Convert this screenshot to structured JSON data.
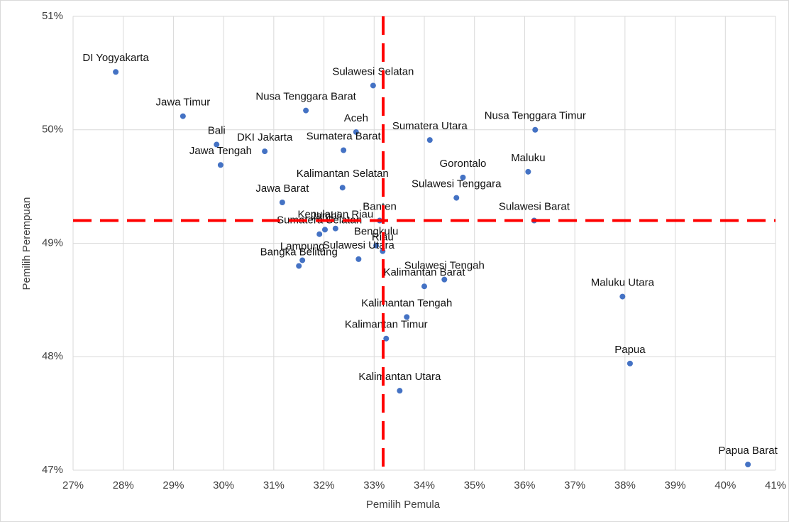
{
  "chart_data": {
    "type": "scatter",
    "xlabel": "Pemilih Pemula",
    "ylabel": "Pemilih Perempuan",
    "color": "#4472c4",
    "grid": true,
    "xlim": [
      27,
      41
    ],
    "ylim": [
      47,
      51
    ],
    "xticks": [
      {
        "value": 27,
        "label": "27%"
      },
      {
        "value": 28,
        "label": "28%"
      },
      {
        "value": 29,
        "label": "29%"
      },
      {
        "value": 30,
        "label": "30%"
      },
      {
        "value": 31,
        "label": "31%"
      },
      {
        "value": 32,
        "label": "32%"
      },
      {
        "value": 33,
        "label": "33%"
      },
      {
        "value": 34,
        "label": "34%"
      },
      {
        "value": 35,
        "label": "35%"
      },
      {
        "value": 36,
        "label": "36%"
      },
      {
        "value": 37,
        "label": "37%"
      },
      {
        "value": 38,
        "label": "38%"
      },
      {
        "value": 39,
        "label": "39%"
      },
      {
        "value": 40,
        "label": "40%"
      },
      {
        "value": 41,
        "label": "41%"
      }
    ],
    "yticks": [
      {
        "value": 47,
        "label": "47%"
      },
      {
        "value": 48,
        "label": "48%"
      },
      {
        "value": 49,
        "label": "49%"
      },
      {
        "value": 50,
        "label": "50%"
      },
      {
        "value": 51,
        "label": "51%"
      }
    ],
    "reference_lines": {
      "x": 33.18,
      "y": 49.2,
      "color": "#ff0000"
    },
    "labels": [
      "DI Yogyakarta",
      "Jawa Timur",
      "Bali",
      "Jawa Tengah",
      "DKI Jakarta",
      "Nusa Tenggara Barat",
      "Sulawesi Selatan",
      "Aceh",
      "Sumatera Barat",
      "Sumatera Utara",
      "Nusa Tenggara Timur",
      "Maluku",
      "Gorontalo",
      "Sulawesi Tenggara",
      "Kalimantan Selatan",
      "Jawa Barat",
      "Banten",
      "Sulawesi Barat",
      "Kepulauan Riau",
      "Jambi",
      "Sumatera Selatan",
      "Bengkulu",
      "Riau",
      "Sulawesi Utara",
      "Lampung",
      "Bangka Belitung",
      "Sulawesi Tengah",
      "Kalimantan Barat",
      "Maluku Utara",
      "Kalimantan Tengah",
      "Kalimantan Timur",
      "Papua",
      "Kalimantan Utara",
      "Papua Barat"
    ],
    "x": [
      27.85,
      29.19,
      29.86,
      29.94,
      30.82,
      31.64,
      32.98,
      32.64,
      32.39,
      34.11,
      36.21,
      36.07,
      34.77,
      34.64,
      32.37,
      31.17,
      33.11,
      36.19,
      32.23,
      32.02,
      31.91,
      33.04,
      33.17,
      32.69,
      31.57,
      31.5,
      34.4,
      34.0,
      37.95,
      33.65,
      33.24,
      38.1,
      33.51,
      40.45
    ],
    "y": [
      50.51,
      50.12,
      49.87,
      49.69,
      49.81,
      50.17,
      50.39,
      49.98,
      49.82,
      49.91,
      50.0,
      49.63,
      49.58,
      49.4,
      49.49,
      49.36,
      49.2,
      49.2,
      49.13,
      49.12,
      49.08,
      48.98,
      48.93,
      48.86,
      48.85,
      48.8,
      48.68,
      48.62,
      48.53,
      48.35,
      48.16,
      47.94,
      47.7,
      47.05
    ]
  }
}
